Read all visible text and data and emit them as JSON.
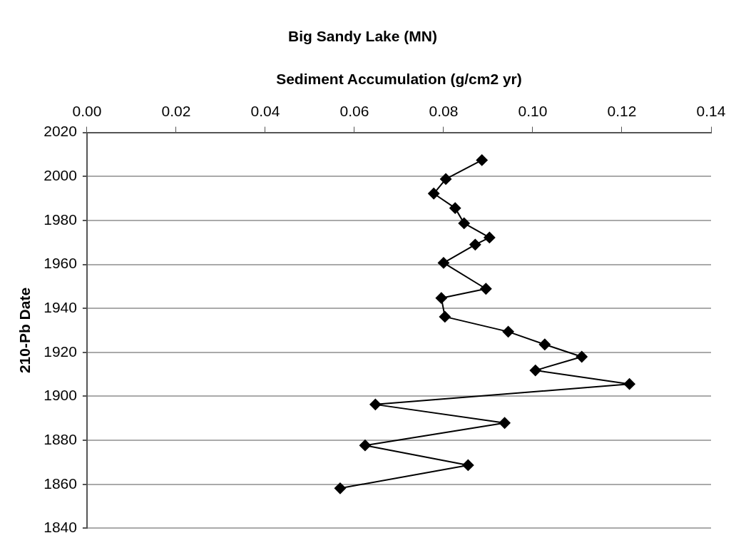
{
  "chart_data": {
    "type": "line",
    "title": "Big Sandy Lake (MN)",
    "xlabel": "Sediment Accumulation (g/cm2 yr)",
    "ylabel": "210-Pb Date",
    "series": [
      {
        "color": "#000000",
        "x": [
          0.0886,
          0.0805,
          0.0778,
          0.0826,
          0.0846,
          0.0903,
          0.0871,
          0.08,
          0.0895,
          0.0795,
          0.0803,
          0.0945,
          0.1027,
          0.111,
          0.1006,
          0.1217,
          0.0647,
          0.0937,
          0.0624,
          0.0855,
          0.0568
        ],
        "values": [
          2007.4,
          1998.8,
          1992.2,
          1985.6,
          1978.7,
          1972.2,
          1969.0,
          1960.7,
          1948.9,
          1944.7,
          1936.2,
          1929.4,
          1923.6,
          1918.0,
          1911.8,
          1905.6,
          1896.3,
          1887.9,
          1877.7,
          1868.7,
          1858.2
        ]
      }
    ],
    "xlim": [
      0,
      0.14
    ],
    "xticks": [
      {
        "value": 0,
        "label": "0.00"
      },
      {
        "value": 0.02,
        "label": "0.02"
      },
      {
        "value": 0.04,
        "label": "0.04"
      },
      {
        "value": 0.06,
        "label": "0.06"
      },
      {
        "value": 0.08,
        "label": "0.08"
      },
      {
        "value": 0.1,
        "label": "0.10"
      },
      {
        "value": 0.12,
        "label": "0.12"
      },
      {
        "value": 0.14,
        "label": "0.14"
      }
    ],
    "ylim": [
      1840,
      2020
    ],
    "yticks": [
      1840,
      1860,
      1880,
      1900,
      1920,
      1940,
      1960,
      1980,
      2000,
      2020
    ],
    "grid": "y",
    "marker": "diamond",
    "line_style": "solid"
  }
}
